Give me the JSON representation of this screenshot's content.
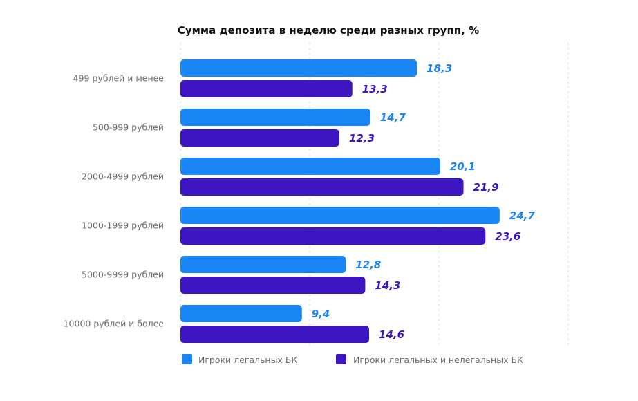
{
  "chart_data": {
    "type": "bar",
    "orientation": "horizontal",
    "title": "Сумма депозита в неделю среди разных групп, %",
    "categories": [
      "499 рублей и менее",
      "500-999 рублей",
      "2000-4999 рублей",
      "1000-1999 рублей",
      "5000-9999 рублей",
      "10000 рублей и более"
    ],
    "series": [
      {
        "name": "Игроки легальных БК",
        "color": "#1a86f5",
        "values": [
          18.3,
          14.7,
          20.1,
          24.7,
          12.8,
          9.4
        ],
        "labels": [
          "18,3",
          "14,7",
          "20,1",
          "24,7",
          "12,8",
          "9,4"
        ]
      },
      {
        "name": "Игроки легальных и нелегальных БК",
        "color": "#3d16c2",
        "values": [
          13.3,
          12.3,
          21.9,
          23.6,
          14.3,
          14.6
        ],
        "labels": [
          "13,3",
          "12,3",
          "21,9",
          "23,6",
          "14,3",
          "14,6"
        ]
      }
    ],
    "xlim": [
      0,
      30
    ],
    "grid": true,
    "legend_position": "bottom"
  }
}
